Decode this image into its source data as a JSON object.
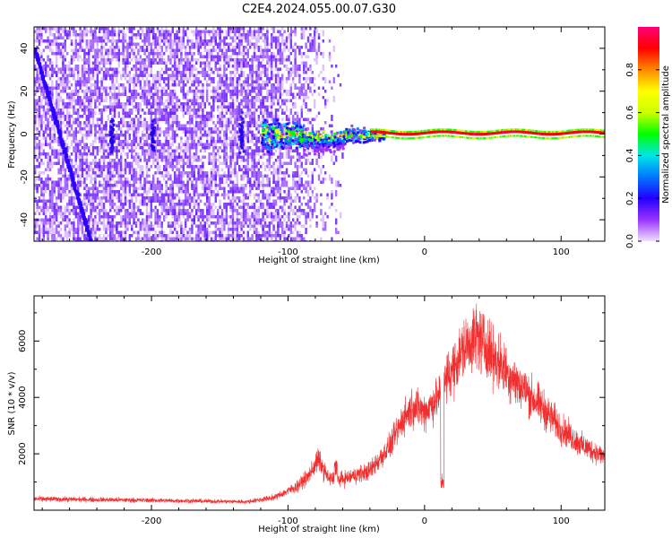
{
  "title": "C2E4.2024.055.00.07.G30",
  "colors": {
    "snr_line": "#f03030",
    "spec_bg_strong": "#6a1bff",
    "spec_bg_weak": "#d9b8ff",
    "axis": "#000000"
  },
  "colorbar": {
    "label": "Normalized spectral amplitude",
    "ticks": [
      "0.0",
      "0.2",
      "0.4",
      "0.6",
      "0.8"
    ],
    "tick_values": [
      0.0,
      0.2,
      0.4,
      0.6,
      0.8
    ],
    "range": [
      0,
      1
    ],
    "stops": [
      "#f0e0ff",
      "#9933ff",
      "#2200ff",
      "#0077ff",
      "#00e6e6",
      "#00ff00",
      "#ccff00",
      "#ffff00",
      "#ff8800",
      "#ff0000",
      "#ff0077"
    ]
  },
  "chart_data": [
    {
      "type": "heatmap",
      "title": "C2E4.2024.055.00.07.G30",
      "xlabel": "Height of straight line (km)",
      "ylabel": "Frequency (Hz)",
      "xlim": [
        -286,
        132
      ],
      "ylim": [
        -50,
        50
      ],
      "xticks": [
        -200,
        -100,
        0,
        100
      ],
      "xtick_labels": [
        "-200",
        "-100",
        "0",
        "100"
      ],
      "yticks": [
        -40,
        -20,
        0,
        20,
        40
      ],
      "ytick_labels": [
        "-40",
        "-20",
        "0",
        "20",
        "40"
      ],
      "features": {
        "noise_region_x": [
          -286,
          -110
        ],
        "noise_fade_x": [
          -110,
          -60
        ],
        "signal_band_freq": 0,
        "signal_spread_region_x": [
          -120,
          -30
        ],
        "clean_line_x": [
          -30,
          132
        ],
        "chirp_x": [
          -286,
          -245
        ],
        "chirp_freq": [
          40,
          -50
        ],
        "vertical_streaks_x": [
          -200,
          -135,
          -230
        ]
      }
    },
    {
      "type": "line",
      "xlabel": "Height of straight line (km)",
      "ylabel": "SNR (10 * v/v)",
      "xlim": [
        -286,
        132
      ],
      "ylim": [
        0,
        7600
      ],
      "xticks": [
        -200,
        -100,
        0,
        100
      ],
      "xtick_labels": [
        "-200",
        "-100",
        "0",
        "100"
      ],
      "yticks": [
        2000,
        4000,
        6000
      ],
      "ytick_labels": [
        "2000",
        "4000",
        "6000"
      ],
      "envelope": {
        "x": [
          -286,
          -250,
          -200,
          -160,
          -130,
          -110,
          -95,
          -85,
          -78,
          -70,
          -60,
          -40,
          -25,
          -15,
          -8,
          0,
          10,
          20,
          30,
          38,
          45,
          55,
          70,
          85,
          100,
          115,
          132
        ],
        "y": [
          400,
          380,
          350,
          320,
          300,
          450,
          800,
          1200,
          1800,
          1100,
          1100,
          1400,
          2300,
          3300,
          3700,
          3500,
          4000,
          5000,
          5800,
          6200,
          5800,
          5200,
          4400,
          3700,
          2900,
          2300,
          1900
        ]
      },
      "dips": [
        {
          "x": 13,
          "y": 700
        },
        {
          "x": -65,
          "y": 1200
        }
      ]
    }
  ]
}
